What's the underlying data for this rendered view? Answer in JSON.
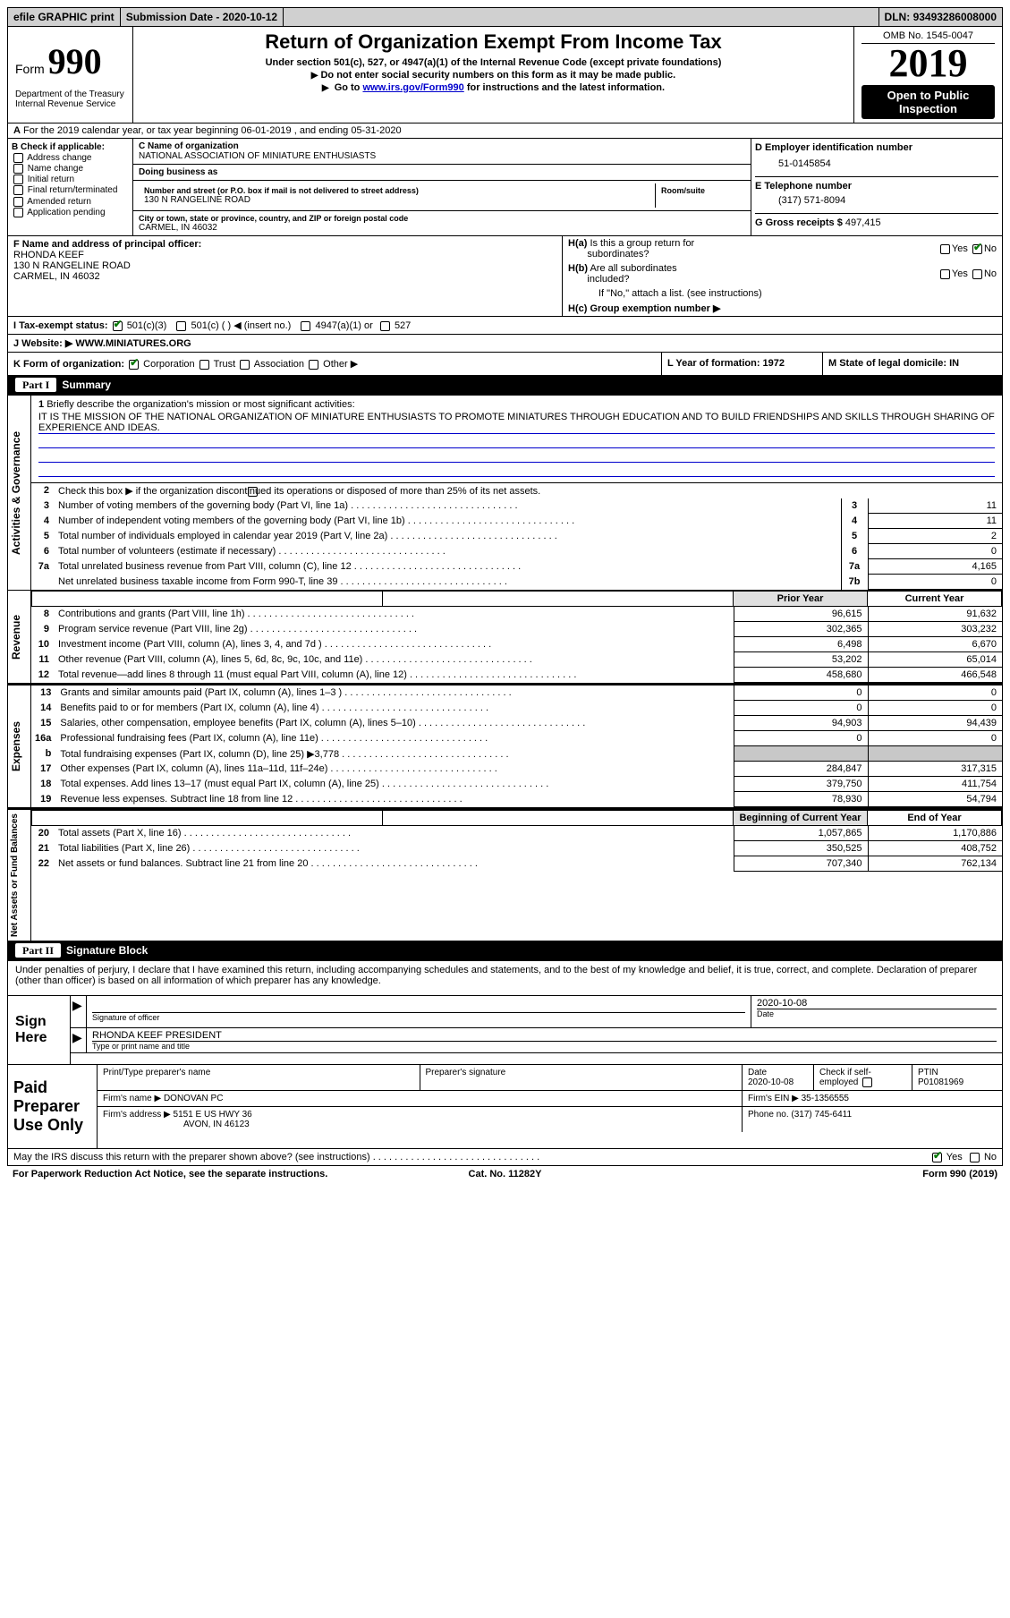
{
  "top_bar": {
    "efile": "efile GRAPHIC print",
    "submission": "Submission Date - 2020-10-12",
    "dln_label": "DLN:",
    "dln": "93493286008000"
  },
  "header": {
    "form_word": "Form",
    "form_num": "990",
    "dept": "Department of the Treasury\nInternal Revenue Service",
    "title": "Return of Organization Exempt From Income Tax",
    "subtitle": "Under section 501(c), 527, or 4947(a)(1) of the Internal Revenue Code (except private foundations)",
    "instr1": "Do not enter social security numbers on this form as it may be made public.",
    "instr2_pre": "Go to ",
    "instr2_link": "www.irs.gov/Form990",
    "instr2_post": " for instructions and the latest information.",
    "omb": "OMB No. 1545-0047",
    "year": "2019",
    "public": "Open to Public Inspection"
  },
  "row_a": "For the 2019 calendar year, or tax year beginning 06-01-2019   , and ending 05-31-2020",
  "col_b": {
    "header": "B Check if applicable:",
    "items": [
      "Address change",
      "Name change",
      "Initial return",
      "Final return/terminated",
      "Amended return",
      "Application pending"
    ]
  },
  "col_c": {
    "name_lbl": "C Name of organization",
    "name": "NATIONAL ASSOCIATION OF MINIATURE ENTHUSIASTS",
    "dba_lbl": "Doing business as",
    "street_lbl": "Number and street (or P.O. box if mail is not delivered to street address)",
    "street": "130 N RANGELINE ROAD",
    "room_lbl": "Room/suite",
    "city_lbl": "City or town, state or province, country, and ZIP or foreign postal code",
    "city": "CARMEL, IN  46032"
  },
  "col_d": {
    "ein_lbl": "D Employer identification number",
    "ein": "51-0145854",
    "phone_lbl": "E Telephone number",
    "phone": "(317) 571-8094",
    "gross_lbl": "G Gross receipts $",
    "gross": "497,415"
  },
  "section_f": {
    "lbl": "F  Name and address of principal officer:",
    "name": "RHONDA KEEF",
    "addr1": "130 N RANGELINE ROAD",
    "addr2": "CARMEL, IN  46032"
  },
  "section_h": {
    "ha": "H(a)  Is this a group return for subordinates?",
    "hb": "H(b)  Are all subordinates included?",
    "hb_note": "If \"No,\" attach a list. (see instructions)",
    "hc": "H(c)  Group exemption number ▶",
    "yes": "Yes",
    "no": "No"
  },
  "tax_status": {
    "lbl": "I   Tax-exempt status:",
    "opt1": "501(c)(3)",
    "opt2": "501(c) (  ) ◀ (insert no.)",
    "opt3": "4947(a)(1) or",
    "opt4": "527"
  },
  "website": {
    "lbl": "J   Website: ▶",
    "val": "WWW.MINIATURES.ORG"
  },
  "row_k": {
    "lbl": "K Form of organization:",
    "corp": "Corporation",
    "trust": "Trust",
    "assoc": "Association",
    "other": "Other ▶"
  },
  "row_l": "L Year of formation: 1972",
  "row_m": "M State of legal domicile: IN",
  "part1": {
    "header_num": "Part I",
    "header_txt": "Summary",
    "line1_lbl": "1",
    "line1_txt": "Briefly describe the organization's mission or most significant activities:",
    "mission": "IT IS THE MISSION OF THE NATIONAL ORGANIZATION OF MINIATURE ENTHUSIASTS TO PROMOTE MINIATURES THROUGH EDUCATION AND TO BUILD FRIENDSHIPS AND SKILLS THROUGH SHARING OF EXPERIENCE AND IDEAS.",
    "line2": "Check this box ▶       if the organization discontinued its operations or disposed of more than 25% of its net assets.",
    "rows": [
      {
        "n": "3",
        "d": "Number of voting members of the governing body (Part VI, line 1a)",
        "c": "3",
        "v": "11"
      },
      {
        "n": "4",
        "d": "Number of independent voting members of the governing body (Part VI, line 1b)",
        "c": "4",
        "v": "11"
      },
      {
        "n": "5",
        "d": "Total number of individuals employed in calendar year 2019 (Part V, line 2a)",
        "c": "5",
        "v": "2"
      },
      {
        "n": "6",
        "d": "Total number of volunteers (estimate if necessary)",
        "c": "6",
        "v": "0"
      },
      {
        "n": "7a",
        "d": "Total unrelated business revenue from Part VIII, column (C), line 12",
        "c": "7a",
        "v": "4,165"
      },
      {
        "n": "",
        "d": "Net unrelated business taxable income from Form 990-T, line 39",
        "c": "7b",
        "v": "0"
      }
    ]
  },
  "part1_b": "b",
  "revenue": {
    "prior_head": "Prior Year",
    "curr_head": "Current Year",
    "rows": [
      {
        "n": "8",
        "d": "Contributions and grants (Part VIII, line 1h)",
        "p": "96,615",
        "c": "91,632"
      },
      {
        "n": "9",
        "d": "Program service revenue (Part VIII, line 2g)",
        "p": "302,365",
        "c": "303,232"
      },
      {
        "n": "10",
        "d": "Investment income (Part VIII, column (A), lines 3, 4, and 7d )",
        "p": "6,498",
        "c": "6,670"
      },
      {
        "n": "11",
        "d": "Other revenue (Part VIII, column (A), lines 5, 6d, 8c, 9c, 10c, and 11e)",
        "p": "53,202",
        "c": "65,014"
      },
      {
        "n": "12",
        "d": "Total revenue—add lines 8 through 11 (must equal Part VIII, column (A), line 12)",
        "p": "458,680",
        "c": "466,548"
      }
    ]
  },
  "expenses": {
    "rows": [
      {
        "n": "13",
        "d": "Grants and similar amounts paid (Part IX, column (A), lines 1–3 )",
        "p": "0",
        "c": "0"
      },
      {
        "n": "14",
        "d": "Benefits paid to or for members (Part IX, column (A), line 4)",
        "p": "0",
        "c": "0"
      },
      {
        "n": "15",
        "d": "Salaries, other compensation, employee benefits (Part IX, column (A), lines 5–10)",
        "p": "94,903",
        "c": "94,439"
      },
      {
        "n": "16a",
        "d": "Professional fundraising fees (Part IX, column (A), line 11e)",
        "p": "0",
        "c": "0"
      },
      {
        "n": "b",
        "d": "Total fundraising expenses (Part IX, column (D), line 25) ▶3,778",
        "p": "shade",
        "c": "shade"
      },
      {
        "n": "17",
        "d": "Other expenses (Part IX, column (A), lines 11a–11d, 11f–24e)",
        "p": "284,847",
        "c": "317,315"
      },
      {
        "n": "18",
        "d": "Total expenses. Add lines 13–17 (must equal Part IX, column (A), line 25)",
        "p": "379,750",
        "c": "411,754"
      },
      {
        "n": "19",
        "d": "Revenue less expenses. Subtract line 18 from line 12",
        "p": "78,930",
        "c": "54,794"
      }
    ]
  },
  "netassets": {
    "beg_head": "Beginning of Current Year",
    "end_head": "End of Year",
    "rows": [
      {
        "n": "20",
        "d": "Total assets (Part X, line 16)",
        "p": "1,057,865",
        "c": "1,170,886"
      },
      {
        "n": "21",
        "d": "Total liabilities (Part X, line 26)",
        "p": "350,525",
        "c": "408,752"
      },
      {
        "n": "22",
        "d": "Net assets or fund balances. Subtract line 21 from line 20",
        "p": "707,340",
        "c": "762,134"
      }
    ]
  },
  "part2": {
    "header_num": "Part II",
    "header_txt": "Signature Block",
    "declaration": "Under penalties of perjury, I declare that I have examined this return, including accompanying schedules and statements, and to the best of my knowledge and belief, it is true, correct, and complete. Declaration of preparer (other than officer) is based on all information of which preparer has any knowledge."
  },
  "sign": {
    "label": "Sign Here",
    "sig_off": "Signature of officer",
    "date_lbl": "Date",
    "date": "2020-10-08",
    "name": "RHONDA KEEF  PRESIDENT",
    "type_lbl": "Type or print name and title"
  },
  "preparer": {
    "label": "Paid Preparer Use Only",
    "name_lbl": "Print/Type preparer's name",
    "sig_lbl": "Preparer's signature",
    "date_lbl": "Date",
    "date": "2020-10-08",
    "check_lbl": "Check       if self-employed",
    "ptin_lbl": "PTIN",
    "ptin": "P01081969",
    "firm_name_lbl": "Firm's name   ▶",
    "firm_name": "DONOVAN PC",
    "firm_ein_lbl": "Firm's EIN ▶",
    "firm_ein": "35-1356555",
    "firm_addr_lbl": "Firm's address ▶",
    "firm_addr1": "5151 E US HWY 36",
    "firm_addr2": "AVON, IN  46123",
    "phone_lbl": "Phone no.",
    "phone": "(317) 745-6411"
  },
  "footer": {
    "discuss": "May the IRS discuss this return with the preparer shown above? (see instructions)",
    "yes": "Yes",
    "no": "No",
    "paperwork": "For Paperwork Reduction Act Notice, see the separate instructions.",
    "cat": "Cat. No. 11282Y",
    "form": "Form 990 (2019)"
  },
  "side_labels": {
    "activities": "Activities & Governance",
    "revenue": "Revenue",
    "expenses": "Expenses",
    "netassets": "Net Assets or Fund Balances"
  }
}
